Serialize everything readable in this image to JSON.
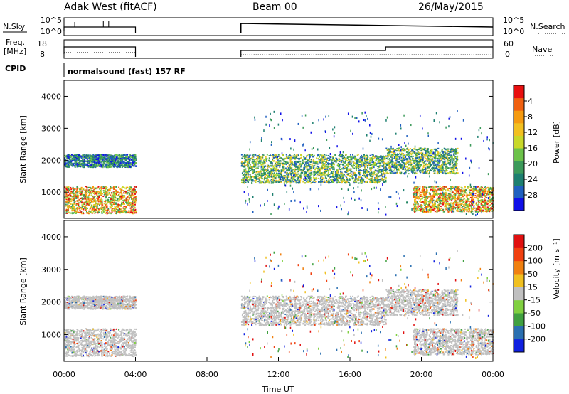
{
  "header": {
    "station": "Adak West (fitACF)",
    "beam": "Beam 00",
    "date": "26/May/2015"
  },
  "strips": {
    "nsky_label": "N.Sky",
    "nsky_ticks": [
      "10^5",
      "10^0"
    ],
    "nsearch_label": "N.Search",
    "nsearch_ticks": [
      "10^5",
      "10^0"
    ],
    "freq_label_1": "Freq.",
    "freq_label_2": "[MHz]",
    "freq_ticks": [
      "18",
      "8"
    ],
    "nave_label": "Nave",
    "nave_ticks": [
      "60",
      "0"
    ],
    "cpid_label": "CPID",
    "cpid_text": "normalsound (fast) 157 RF"
  },
  "chart_data": [
    {
      "type": "heatmap",
      "name": "power",
      "ylabel": "Slant Range [km]",
      "xlabel": "",
      "yticks": [
        "1000",
        "2000",
        "3000",
        "4000"
      ],
      "ylim": [
        180,
        4500
      ],
      "xlim_hours": [
        0,
        24
      ],
      "colorbar": {
        "label": "Power [dB]",
        "ticks": [
          "4",
          "8",
          "12",
          "16",
          "20",
          "24",
          "28"
        ],
        "colors": [
          "#1010e8",
          "#2060c0",
          "#1d7f70",
          "#3c9a5a",
          "#6cc24a",
          "#c8d82a",
          "#f2c020",
          "#f59a10",
          "#f06010",
          "#e81010"
        ]
      },
      "data_gap_hours": [
        4.0,
        9.9
      ],
      "echo_bands": [
        {
          "hours": [
            0.0,
            4.0
          ],
          "range_km": [
            1800,
            2200
          ],
          "level": "low"
        },
        {
          "hours": [
            0.0,
            4.0
          ],
          "range_km": [
            350,
            1200
          ],
          "level": "high"
        },
        {
          "hours": [
            9.9,
            18.0
          ],
          "range_km": [
            1300,
            2200
          ],
          "level": "mid"
        },
        {
          "hours": [
            18.0,
            22.0
          ],
          "range_km": [
            1600,
            2400
          ],
          "level": "mid"
        },
        {
          "hours": [
            19.5,
            24.0
          ],
          "range_km": [
            400,
            1200
          ],
          "level": "high"
        }
      ]
    },
    {
      "type": "heatmap",
      "name": "velocity",
      "ylabel": "Slant Range [km]",
      "xlabel": "Time UT",
      "yticks": [
        "1000",
        "2000",
        "3000",
        "4000"
      ],
      "xticks": [
        "00:00",
        "04:00",
        "08:00",
        "12:00",
        "16:00",
        "20:00",
        "00:00"
      ],
      "ylim": [
        180,
        4500
      ],
      "xlim_hours": [
        0,
        24
      ],
      "colorbar": {
        "label": "Velocity [m s⁻¹]",
        "ticks": [
          "200",
          "100",
          "50",
          "15",
          "-15",
          "-50",
          "-100",
          "-200"
        ],
        "colors": [
          "#1020e0",
          "#2a6fb0",
          "#40a040",
          "#80d040",
          "#c0c0c0",
          "#f0c020",
          "#f08010",
          "#f04010",
          "#e01010"
        ]
      }
    }
  ]
}
